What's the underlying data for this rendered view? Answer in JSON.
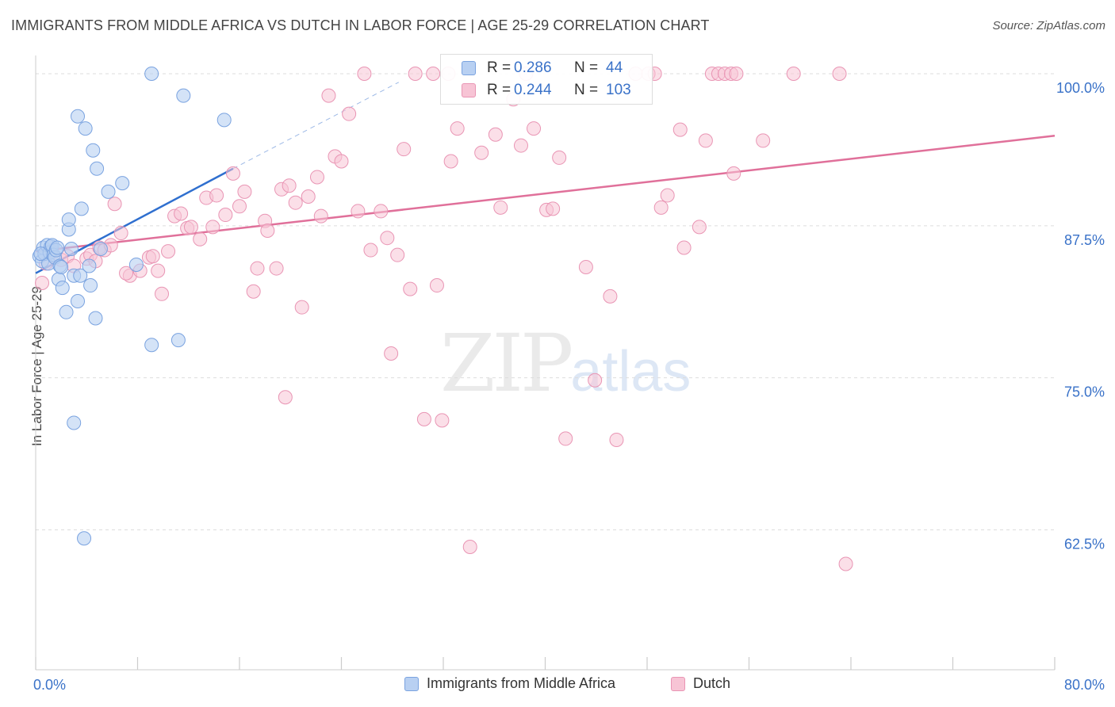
{
  "title": "IMMIGRANTS FROM MIDDLE AFRICA VS DUTCH IN LABOR FORCE | AGE 25-29 CORRELATION CHART",
  "source": "Source: ZipAtlas.com",
  "watermark": {
    "zip": "ZIP",
    "atlas": "atlas"
  },
  "colors": {
    "blue_fill": "#b8d0f2",
    "blue_stroke": "#7aa3e0",
    "blue_line": "#2f6fcf",
    "pink_fill": "#f7c4d5",
    "pink_stroke": "#e995b4",
    "pink_line": "#e0709a",
    "tick_label": "#3a72c8",
    "grid": "#dddddd"
  },
  "stats": [
    {
      "r_label": "R =",
      "r_value": "0.286",
      "n_label": "N =",
      "n_value": "44"
    },
    {
      "r_label": "R =",
      "r_value": "0.244",
      "n_label": "N =",
      "n_value": "103"
    }
  ],
  "chart_data": {
    "type": "scatter",
    "title": "IMMIGRANTS FROM MIDDLE AFRICA VS DUTCH IN LABOR FORCE | AGE 25-29 CORRELATION CHART",
    "xlabel": "",
    "ylabel": "In Labor Force | Age 25-29",
    "xlim": [
      0,
      80
    ],
    "ylim": [
      51,
      101.5
    ],
    "x_tick_labels": [
      "0.0%",
      "80.0%"
    ],
    "y_ticks": [
      62.5,
      75.0,
      87.5,
      100.0
    ],
    "y_tick_labels": [
      "62.5%",
      "75.0%",
      "87.5%",
      "100.0%"
    ],
    "grid": true,
    "legend_position": "bottom",
    "series": [
      {
        "name": "Immigrants from Middle Africa",
        "r": 0.286,
        "n": 44,
        "trend": {
          "x": [
            0,
            15.5
          ],
          "y": [
            83.6,
            92.2
          ]
        },
        "trend_extension": {
          "x": [
            15.5,
            28.5
          ],
          "y": [
            92.2,
            99.3
          ]
        },
        "points": [
          [
            0.3,
            85.0
          ],
          [
            0.5,
            84.6
          ],
          [
            0.6,
            85.7
          ],
          [
            0.7,
            85.2
          ],
          [
            0.9,
            85.9
          ],
          [
            1.0,
            84.4
          ],
          [
            1.1,
            85.3
          ],
          [
            1.2,
            85.8
          ],
          [
            1.3,
            85.9
          ],
          [
            1.4,
            85.1
          ],
          [
            1.5,
            84.9
          ],
          [
            1.6,
            85.5
          ],
          [
            1.7,
            85.7
          ],
          [
            1.8,
            83.1
          ],
          [
            1.9,
            84.2
          ],
          [
            2.0,
            84.1
          ],
          [
            2.1,
            82.4
          ],
          [
            2.4,
            80.4
          ],
          [
            2.6,
            87.2
          ],
          [
            2.6,
            88.0
          ],
          [
            2.8,
            85.6
          ],
          [
            3.0,
            83.4
          ],
          [
            3.0,
            71.3
          ],
          [
            3.3,
            96.5
          ],
          [
            3.3,
            81.3
          ],
          [
            3.5,
            83.4
          ],
          [
            3.6,
            88.9
          ],
          [
            3.8,
            61.8
          ],
          [
            3.9,
            95.5
          ],
          [
            4.2,
            84.2
          ],
          [
            4.3,
            82.6
          ],
          [
            4.5,
            93.7
          ],
          [
            4.7,
            79.9
          ],
          [
            4.8,
            92.2
          ],
          [
            5.1,
            85.6
          ],
          [
            5.7,
            90.3
          ],
          [
            6.8,
            91.0
          ],
          [
            7.9,
            84.3
          ],
          [
            9.1,
            77.7
          ],
          [
            9.1,
            100.0
          ],
          [
            11.2,
            78.1
          ],
          [
            11.6,
            98.2
          ],
          [
            14.8,
            96.2
          ],
          [
            0.4,
            85.2
          ]
        ]
      },
      {
        "name": "Dutch",
        "r": 0.244,
        "n": 103,
        "trend": {
          "x": [
            0,
            80
          ],
          "y": [
            85.4,
            94.9
          ]
        },
        "points": [
          [
            0.5,
            82.8
          ],
          [
            0.8,
            84.4
          ],
          [
            1.2,
            85.4
          ],
          [
            2.0,
            84.7
          ],
          [
            2.5,
            85.0
          ],
          [
            3.0,
            84.2
          ],
          [
            4.0,
            84.8
          ],
          [
            4.3,
            85.1
          ],
          [
            4.7,
            84.6
          ],
          [
            5.0,
            85.7
          ],
          [
            5.4,
            85.5
          ],
          [
            5.9,
            85.9
          ],
          [
            6.2,
            89.3
          ],
          [
            6.7,
            86.9
          ],
          [
            7.4,
            83.4
          ],
          [
            8.2,
            83.8
          ],
          [
            8.9,
            84.9
          ],
          [
            9.6,
            83.8
          ],
          [
            9.9,
            81.9
          ],
          [
            10.4,
            85.4
          ],
          [
            10.9,
            88.3
          ],
          [
            11.4,
            88.5
          ],
          [
            11.9,
            87.3
          ],
          [
            12.2,
            87.4
          ],
          [
            12.9,
            86.4
          ],
          [
            13.4,
            89.8
          ],
          [
            13.9,
            87.4
          ],
          [
            14.2,
            90.0
          ],
          [
            14.9,
            88.4
          ],
          [
            15.5,
            91.8
          ],
          [
            16.0,
            89.1
          ],
          [
            16.4,
            90.3
          ],
          [
            17.1,
            82.1
          ],
          [
            17.4,
            84.0
          ],
          [
            18.0,
            87.9
          ],
          [
            18.2,
            87.1
          ],
          [
            18.9,
            84.0
          ],
          [
            19.3,
            90.5
          ],
          [
            19.6,
            73.4
          ],
          [
            19.9,
            90.8
          ],
          [
            20.4,
            89.4
          ],
          [
            20.9,
            80.8
          ],
          [
            21.4,
            89.9
          ],
          [
            22.1,
            91.5
          ],
          [
            22.4,
            88.3
          ],
          [
            23.0,
            98.2
          ],
          [
            23.5,
            93.2
          ],
          [
            24.0,
            92.8
          ],
          [
            24.6,
            96.7
          ],
          [
            25.3,
            88.7
          ],
          [
            25.8,
            100.0
          ],
          [
            26.3,
            85.5
          ],
          [
            27.1,
            88.7
          ],
          [
            27.6,
            86.5
          ],
          [
            27.9,
            77.0
          ],
          [
            28.4,
            85.1
          ],
          [
            28.9,
            93.8
          ],
          [
            29.4,
            82.3
          ],
          [
            29.8,
            100.0
          ],
          [
            30.5,
            71.6
          ],
          [
            31.2,
            100.0
          ],
          [
            31.5,
            82.6
          ],
          [
            31.9,
            71.5
          ],
          [
            32.4,
            100.0
          ],
          [
            32.6,
            92.8
          ],
          [
            33.1,
            95.5
          ],
          [
            34.1,
            61.1
          ],
          [
            35.0,
            93.5
          ],
          [
            36.1,
            95.0
          ],
          [
            36.5,
            89.0
          ],
          [
            37.5,
            97.9
          ],
          [
            38.1,
            94.1
          ],
          [
            38.5,
            100.0
          ],
          [
            39.1,
            95.5
          ],
          [
            40.1,
            88.8
          ],
          [
            40.6,
            88.9
          ],
          [
            41.1,
            93.1
          ],
          [
            41.6,
            70.0
          ],
          [
            43.2,
            84.1
          ],
          [
            43.9,
            74.8
          ],
          [
            45.1,
            81.7
          ],
          [
            45.6,
            69.9
          ],
          [
            47.1,
            100.0
          ],
          [
            48.1,
            100.0
          ],
          [
            48.6,
            100.0
          ],
          [
            49.1,
            89.0
          ],
          [
            49.6,
            90.0
          ],
          [
            50.6,
            95.4
          ],
          [
            50.9,
            85.7
          ],
          [
            52.1,
            87.4
          ],
          [
            52.6,
            94.5
          ],
          [
            53.1,
            100.0
          ],
          [
            53.6,
            100.0
          ],
          [
            54.1,
            100.0
          ],
          [
            54.6,
            100.0
          ],
          [
            55.0,
            100.0
          ],
          [
            54.8,
            91.8
          ],
          [
            57.1,
            94.5
          ],
          [
            59.5,
            100.0
          ],
          [
            63.1,
            100.0
          ],
          [
            63.6,
            59.7
          ],
          [
            7.1,
            83.6
          ],
          [
            9.2,
            85.0
          ]
        ]
      }
    ]
  }
}
